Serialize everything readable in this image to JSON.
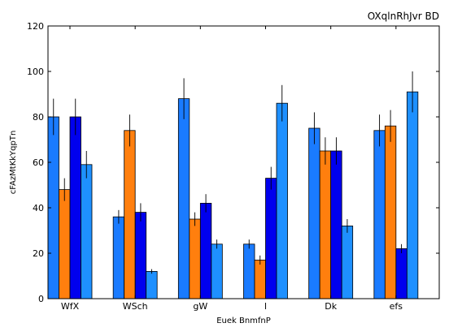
{
  "chart_data": {
    "type": "bar",
    "title": "OXqlnRhJvr BD",
    "xlabel": "Euek BnmfnP",
    "ylabel": "cFAzMtKkYqpTn",
    "categories": [
      "WfX",
      "WSch",
      "gW",
      "l",
      "Dk",
      "efs"
    ],
    "ylim": [
      0,
      120
    ],
    "yticks": [
      0,
      20,
      40,
      60,
      80,
      100,
      120
    ],
    "grid": false,
    "series": [
      {
        "color": "#1a7bff",
        "values": [
          80,
          36,
          88,
          24,
          75,
          74
        ],
        "errors": [
          8,
          3,
          9,
          2,
          7,
          7
        ]
      },
      {
        "color": "#ff7f0e",
        "values": [
          48,
          74,
          35,
          17,
          65,
          76
        ],
        "errors": [
          5,
          7,
          3,
          2,
          6,
          7
        ]
      },
      {
        "color": "#0000ee",
        "values": [
          80,
          38,
          42,
          53,
          65,
          22
        ],
        "errors": [
          8,
          4,
          4,
          5,
          6,
          2
        ]
      },
      {
        "color": "#1e90ff",
        "values": [
          59,
          12,
          24,
          86,
          32,
          91
        ],
        "errors": [
          6,
          1,
          2,
          8,
          3,
          9
        ]
      }
    ]
  }
}
